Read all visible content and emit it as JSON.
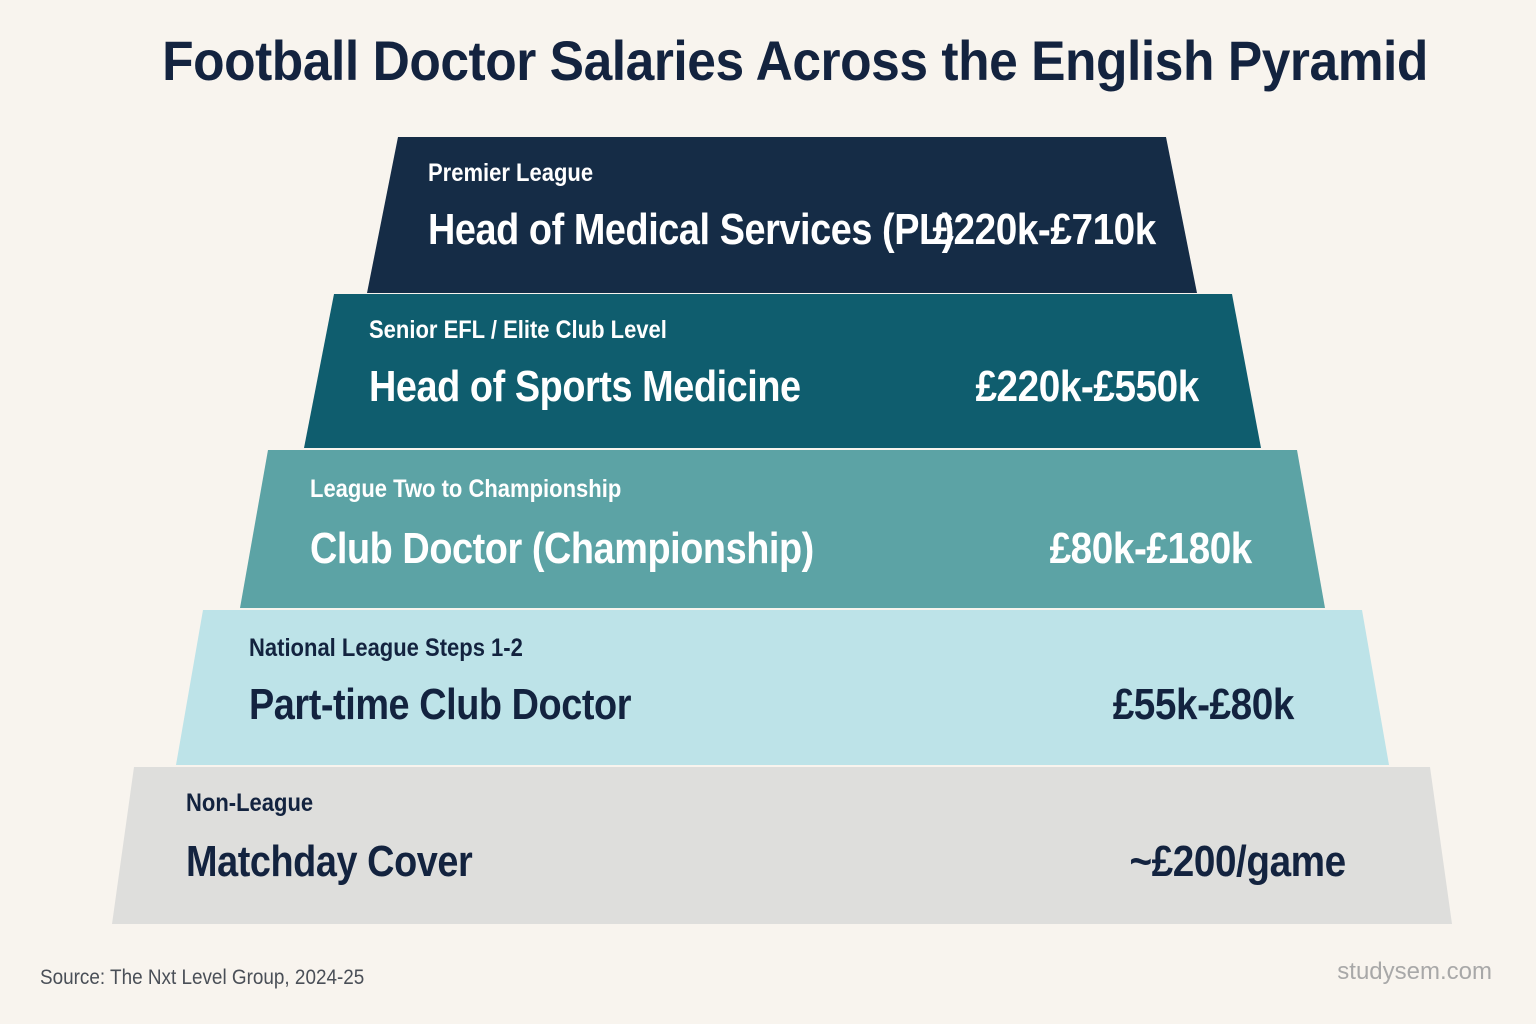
{
  "title": "Football Doctor Salaries Across the English Pyramid",
  "tiers": [
    {
      "league": "Premier League",
      "role": "Head of Medical Services (PL)",
      "salary": "£220k-£710k",
      "color": "#152c46",
      "text_color": "#ffffff"
    },
    {
      "league": "Senior EFL / Elite Club Level",
      "role": "Head of Sports Medicine",
      "salary": "£220k-£550k",
      "color": "#0f5d6e",
      "text_color": "#ffffff"
    },
    {
      "league": "League Two to Championship",
      "role": "Club Doctor (Championship)",
      "salary": "£80k-£180k",
      "color": "#5ca3a5",
      "text_color": "#ffffff"
    },
    {
      "league": "National League Steps 1-2",
      "role": "Part-time Club Doctor",
      "salary": "£55k-£80k",
      "color": "#bde3e8",
      "text_color": "#13233f"
    },
    {
      "league": "Non-League",
      "role": "Matchday Cover",
      "salary": "~£200/game",
      "color": "#dededc",
      "text_color": "#13233f"
    }
  ],
  "source": "Source: The Nxt Level Group, 2024-25",
  "watermark": "studysem.com"
}
